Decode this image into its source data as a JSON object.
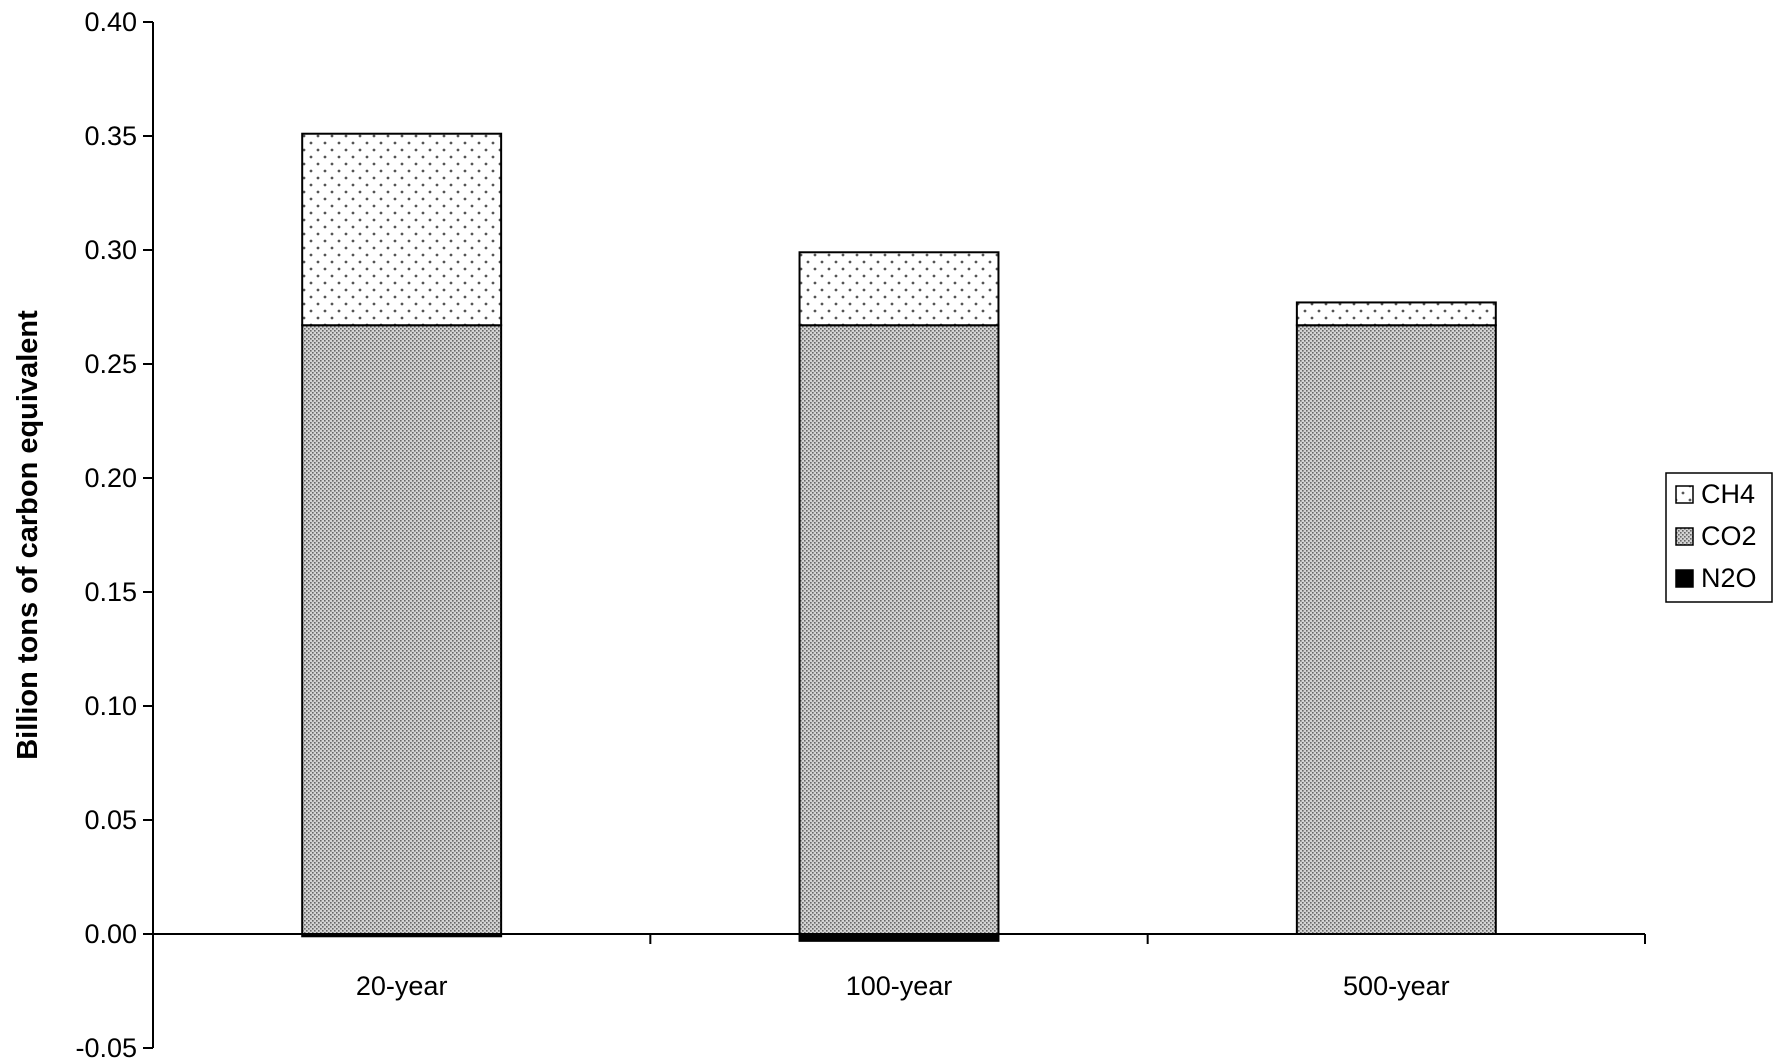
{
  "chart_data": {
    "type": "bar",
    "stacked": true,
    "categories": [
      "20-year",
      "100-year",
      "500-year"
    ],
    "series": [
      {
        "name": "CH4",
        "values": [
          0.084,
          0.032,
          0.01
        ],
        "pattern": "sparse-dots"
      },
      {
        "name": "CO2",
        "values": [
          0.267,
          0.267,
          0.267
        ],
        "pattern": "dense-dots"
      },
      {
        "name": "N2O",
        "values": [
          -0.001,
          -0.003,
          0.0
        ],
        "pattern": "solid-black"
      }
    ],
    "ylabel": "Billion tons of carbon equivalent",
    "ylim": [
      -0.05,
      0.4
    ],
    "yticks": [
      "-0.05",
      "0.00",
      "0.05",
      "0.10",
      "0.15",
      "0.20",
      "0.25",
      "0.30",
      "0.35",
      "0.40"
    ],
    "yticks_values": [
      -0.05,
      0.0,
      0.05,
      0.1,
      0.15,
      0.2,
      0.25,
      0.3,
      0.35,
      0.4
    ],
    "grid": false,
    "legend_position": "right"
  }
}
